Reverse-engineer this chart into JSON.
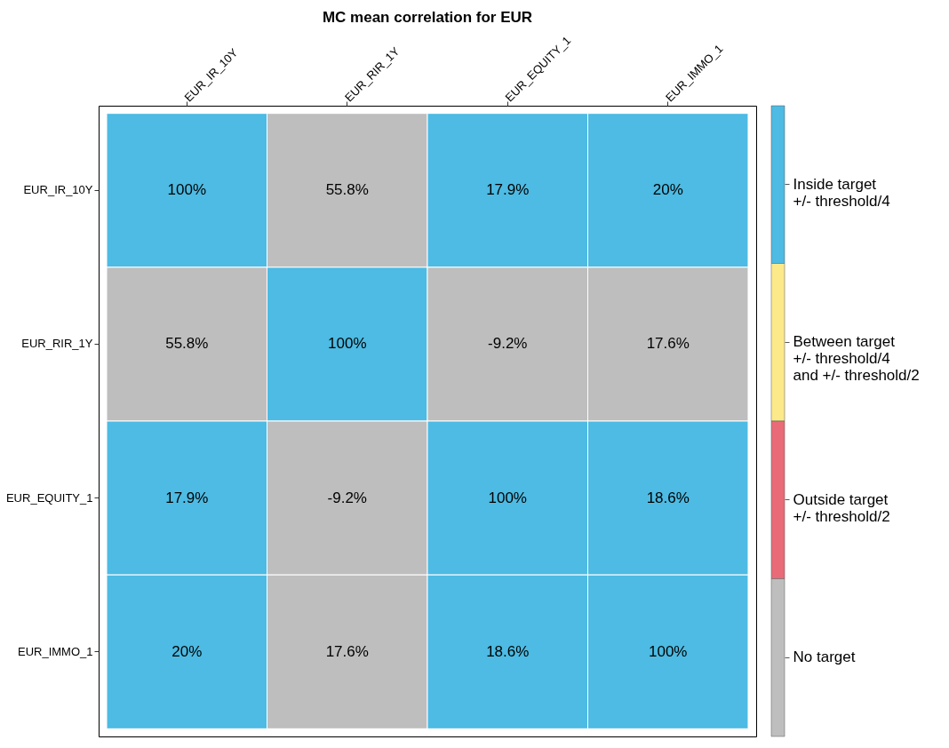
{
  "chart_data": [
    {
      "type": "heatmap",
      "title": "MC mean correlation for EUR",
      "categories": [
        "EUR_IR_10Y",
        "EUR_RIR_1Y",
        "EUR_EQUITY_1",
        "EUR_IMMO_1"
      ],
      "y_categories": [
        "EUR_IR_10Y",
        "EUR_RIR_1Y",
        "EUR_EQUITY_1",
        "EUR_IMMO_1"
      ],
      "cells": [
        [
          100,
          55.8,
          17.9,
          20
        ],
        [
          55.8,
          100,
          -9.2,
          17.6
        ],
        [
          17.9,
          -9.2,
          100,
          18.6
        ],
        [
          20,
          17.6,
          18.6,
          100
        ]
      ],
      "cell_labels": [
        [
          "100%",
          "55.8%",
          "17.9%",
          "20%"
        ],
        [
          "55.8%",
          "100%",
          "-9.2%",
          "17.6%"
        ],
        [
          "17.9%",
          "-9.2%",
          "100%",
          "18.6%"
        ],
        [
          "20%",
          "17.6%",
          "18.6%",
          "100%"
        ]
      ],
      "colors": [
        [
          "#4dbbe3",
          "#bebebe",
          "#4dbbe3",
          "#4dbbe3"
        ],
        [
          "#bebebe",
          "#4dbbe3",
          "#bebebe",
          "#bebebe"
        ],
        [
          "#4dbbe3",
          "#bebebe",
          "#4dbbe3",
          "#4dbbe3"
        ],
        [
          "#4dbbe3",
          "#bebebe",
          "#4dbbe3",
          "#4dbbe3"
        ]
      ]
    },
    {
      "type": "other",
      "categories": [
        "Inside target\n +/- threshold/4",
        "Between target\n +/- threshold/4\n and +/- threshold/2",
        "Outside target\n +/- threshold/2",
        "No target"
      ],
      "colors": [
        "#4dbbe3",
        "#fce98a",
        "#e96b78",
        "#bebebe"
      ]
    }
  ]
}
